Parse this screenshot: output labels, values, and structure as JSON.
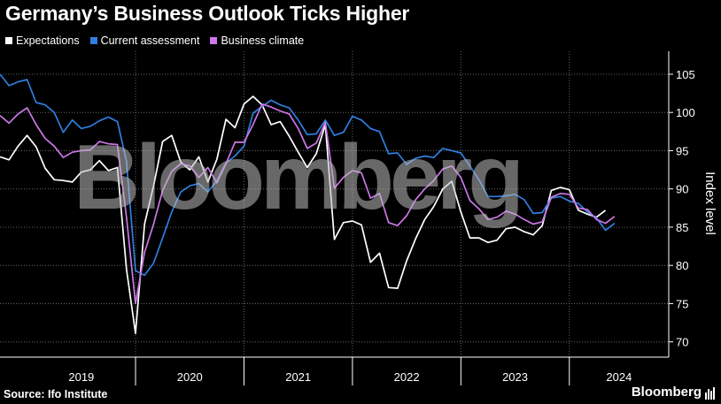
{
  "title": "Germany’s Business Outlook Ticks Higher",
  "source": "Source: Ifo Institute",
  "brand": "Bloomberg",
  "watermark": "Bloomberg",
  "chart_data": {
    "type": "line",
    "title": "Germany’s Business Outlook Ticks Higher",
    "ylabel": "Index level",
    "ylim": [
      68,
      108
    ],
    "yticks": [
      70,
      75,
      80,
      85,
      90,
      95,
      100,
      105
    ],
    "xlim": [
      "2018-10",
      "2024-12"
    ],
    "year_labels": [
      "2019",
      "2020",
      "2021",
      "2022",
      "2023",
      "2024"
    ],
    "grid": true,
    "legend_position": "top-left",
    "series": [
      {
        "name": "Expectations",
        "color": "#ffffff",
        "points": [
          [
            "2018-10",
            94.2
          ],
          [
            "2018-11",
            93.8
          ],
          [
            "2018-12",
            95.6
          ],
          [
            "2019-01",
            97.0
          ],
          [
            "2019-02",
            95.5
          ],
          [
            "2019-03",
            92.7
          ],
          [
            "2019-04",
            91.2
          ],
          [
            "2019-05",
            91.1
          ],
          [
            "2019-06",
            90.9
          ],
          [
            "2019-07",
            92.2
          ],
          [
            "2019-08",
            92.5
          ],
          [
            "2019-09",
            93.7
          ],
          [
            "2019-10",
            92.4
          ],
          [
            "2019-11",
            92.8
          ],
          [
            "2019-12",
            79.5
          ],
          [
            "2020-01",
            71.1
          ],
          [
            "2020-02",
            85.4
          ],
          [
            "2020-03",
            90.4
          ],
          [
            "2020-04",
            96.2
          ],
          [
            "2020-05",
            97.0
          ],
          [
            "2020-06",
            93.5
          ],
          [
            "2020-07",
            92.5
          ],
          [
            "2020-08",
            94.2
          ],
          [
            "2020-09",
            90.9
          ],
          [
            "2020-10",
            93.9
          ],
          [
            "2020-11",
            99.1
          ],
          [
            "2020-12",
            98.0
          ],
          [
            "2021-01",
            101.1
          ],
          [
            "2021-02",
            102.1
          ],
          [
            "2021-03",
            101.0
          ],
          [
            "2021-04",
            98.4
          ],
          [
            "2021-05",
            98.8
          ],
          [
            "2021-06",
            96.9
          ],
          [
            "2021-07",
            94.8
          ],
          [
            "2021-08",
            92.8
          ],
          [
            "2021-09",
            94.6
          ],
          [
            "2021-10",
            98.4
          ],
          [
            "2021-11",
            83.4
          ],
          [
            "2021-12",
            85.6
          ],
          [
            "2022-01",
            85.8
          ],
          [
            "2022-02",
            85.3
          ],
          [
            "2022-03",
            80.4
          ],
          [
            "2022-04",
            81.6
          ],
          [
            "2022-05",
            77.1
          ],
          [
            "2022-06",
            77.0
          ],
          [
            "2022-07",
            80.6
          ],
          [
            "2022-08",
            83.5
          ],
          [
            "2022-09",
            86.0
          ],
          [
            "2022-10",
            87.7
          ],
          [
            "2022-11",
            90.0
          ],
          [
            "2022-12",
            91.0
          ],
          [
            "2023-01",
            87.0
          ],
          [
            "2023-02",
            83.6
          ],
          [
            "2023-03",
            83.6
          ],
          [
            "2023-04",
            83.0
          ],
          [
            "2023-05",
            83.3
          ],
          [
            "2023-06",
            84.8
          ],
          [
            "2023-07",
            85.0
          ],
          [
            "2023-08",
            84.4
          ],
          [
            "2023-09",
            84.0
          ],
          [
            "2023-10",
            85.2
          ],
          [
            "2023-11",
            89.8
          ],
          [
            "2023-12",
            90.2
          ],
          [
            "2024-01",
            89.9
          ],
          [
            "2024-02",
            87.2
          ],
          [
            "2024-03",
            86.7
          ],
          [
            "2024-04",
            86.3
          ],
          [
            "2024-05",
            87.2
          ]
        ]
      },
      {
        "name": "Current assessment",
        "color": "#2f7fe0",
        "points": [
          [
            "2018-10",
            105.0
          ],
          [
            "2018-11",
            103.5
          ],
          [
            "2018-12",
            104.0
          ],
          [
            "2019-01",
            104.3
          ],
          [
            "2019-02",
            101.3
          ],
          [
            "2019-03",
            101.0
          ],
          [
            "2019-04",
            100.0
          ],
          [
            "2019-05",
            97.4
          ],
          [
            "2019-06",
            99.0
          ],
          [
            "2019-07",
            97.9
          ],
          [
            "2019-08",
            98.2
          ],
          [
            "2019-09",
            98.9
          ],
          [
            "2019-10",
            99.4
          ],
          [
            "2019-11",
            98.8
          ],
          [
            "2019-12",
            93.6
          ],
          [
            "2020-01",
            79.3
          ],
          [
            "2020-02",
            78.7
          ],
          [
            "2020-03",
            80.3
          ],
          [
            "2020-04",
            83.6
          ],
          [
            "2020-05",
            87.0
          ],
          [
            "2020-06",
            89.6
          ],
          [
            "2020-07",
            90.4
          ],
          [
            "2020-08",
            90.7
          ],
          [
            "2020-09",
            89.6
          ],
          [
            "2020-10",
            91.1
          ],
          [
            "2020-11",
            93.4
          ],
          [
            "2020-12",
            94.3
          ],
          [
            "2021-01",
            95.6
          ],
          [
            "2021-02",
            99.9
          ],
          [
            "2021-03",
            100.8
          ],
          [
            "2021-04",
            101.6
          ],
          [
            "2021-05",
            101.0
          ],
          [
            "2021-06",
            100.6
          ],
          [
            "2021-07",
            99.0
          ],
          [
            "2021-08",
            97.1
          ],
          [
            "2021-09",
            97.2
          ],
          [
            "2021-10",
            99.0
          ],
          [
            "2021-11",
            97.0
          ],
          [
            "2021-12",
            97.4
          ],
          [
            "2022-01",
            99.5
          ],
          [
            "2022-02",
            99.0
          ],
          [
            "2022-03",
            97.9
          ],
          [
            "2022-04",
            97.5
          ],
          [
            "2022-05",
            94.6
          ],
          [
            "2022-06",
            94.7
          ],
          [
            "2022-07",
            93.2
          ],
          [
            "2022-08",
            94.0
          ],
          [
            "2022-09",
            94.3
          ],
          [
            "2022-10",
            94.1
          ],
          [
            "2022-11",
            95.3
          ],
          [
            "2022-12",
            95.0
          ],
          [
            "2023-01",
            94.7
          ],
          [
            "2023-02",
            93.0
          ],
          [
            "2023-03",
            91.2
          ],
          [
            "2023-04",
            89.0
          ],
          [
            "2023-05",
            89.0
          ],
          [
            "2023-06",
            89.1
          ],
          [
            "2023-07",
            89.3
          ],
          [
            "2023-08",
            88.6
          ],
          [
            "2023-09",
            86.8
          ],
          [
            "2023-10",
            86.9
          ],
          [
            "2023-11",
            88.8
          ],
          [
            "2023-12",
            89.0
          ],
          [
            "2024-01",
            88.4
          ],
          [
            "2024-02",
            88.1
          ],
          [
            "2024-03",
            87.0
          ],
          [
            "2024-04",
            86.2
          ],
          [
            "2024-05",
            84.6
          ],
          [
            "2024-06",
            85.5
          ]
        ]
      },
      {
        "name": "Business climate",
        "color": "#cc77e8",
        "points": [
          [
            "2018-10",
            99.6
          ],
          [
            "2018-11",
            98.6
          ],
          [
            "2018-12",
            99.8
          ],
          [
            "2019-01",
            100.6
          ],
          [
            "2019-02",
            98.4
          ],
          [
            "2019-03",
            96.6
          ],
          [
            "2019-04",
            95.6
          ],
          [
            "2019-05",
            94.1
          ],
          [
            "2019-06",
            94.8
          ],
          [
            "2019-07",
            95.0
          ],
          [
            "2019-08",
            95.1
          ],
          [
            "2019-09",
            96.2
          ],
          [
            "2019-10",
            95.9
          ],
          [
            "2019-11",
            95.8
          ],
          [
            "2019-12",
            86.3
          ],
          [
            "2020-01",
            75.0
          ],
          [
            "2020-02",
            81.7
          ],
          [
            "2020-03",
            85.4
          ],
          [
            "2020-04",
            89.8
          ],
          [
            "2020-05",
            92.3
          ],
          [
            "2020-06",
            93.3
          ],
          [
            "2020-07",
            93.0
          ],
          [
            "2020-08",
            91.5
          ],
          [
            "2020-09",
            92.8
          ],
          [
            "2020-10",
            90.8
          ],
          [
            "2020-11",
            93.3
          ],
          [
            "2020-12",
            96.1
          ],
          [
            "2021-01",
            96.1
          ],
          [
            "2021-02",
            98.4
          ],
          [
            "2021-03",
            101.1
          ],
          [
            "2021-04",
            100.7
          ],
          [
            "2021-05",
            100.2
          ],
          [
            "2021-06",
            99.8
          ],
          [
            "2021-07",
            97.9
          ],
          [
            "2021-08",
            95.3
          ],
          [
            "2021-09",
            96.0
          ],
          [
            "2021-10",
            98.7
          ],
          [
            "2021-11",
            90.1
          ],
          [
            "2021-12",
            91.5
          ],
          [
            "2022-01",
            92.4
          ],
          [
            "2022-02",
            92.1
          ],
          [
            "2022-03",
            88.8
          ],
          [
            "2022-04",
            89.4
          ],
          [
            "2022-05",
            85.6
          ],
          [
            "2022-06",
            85.2
          ],
          [
            "2022-07",
            86.5
          ],
          [
            "2022-08",
            88.6
          ],
          [
            "2022-09",
            90.0
          ],
          [
            "2022-10",
            91.1
          ],
          [
            "2022-11",
            92.6
          ],
          [
            "2022-12",
            93.0
          ],
          [
            "2023-01",
            91.5
          ],
          [
            "2023-02",
            88.5
          ],
          [
            "2023-03",
            87.4
          ],
          [
            "2023-04",
            86.0
          ],
          [
            "2023-05",
            86.3
          ],
          [
            "2023-06",
            87.1
          ],
          [
            "2023-07",
            86.7
          ],
          [
            "2023-08",
            86.0
          ],
          [
            "2023-09",
            85.4
          ],
          [
            "2023-10",
            85.7
          ],
          [
            "2023-11",
            88.9
          ],
          [
            "2023-12",
            89.4
          ],
          [
            "2024-01",
            89.3
          ],
          [
            "2024-02",
            87.5
          ],
          [
            "2024-03",
            87.3
          ],
          [
            "2024-04",
            86.0
          ],
          [
            "2024-05",
            85.5
          ],
          [
            "2024-06",
            86.4
          ]
        ]
      }
    ]
  }
}
